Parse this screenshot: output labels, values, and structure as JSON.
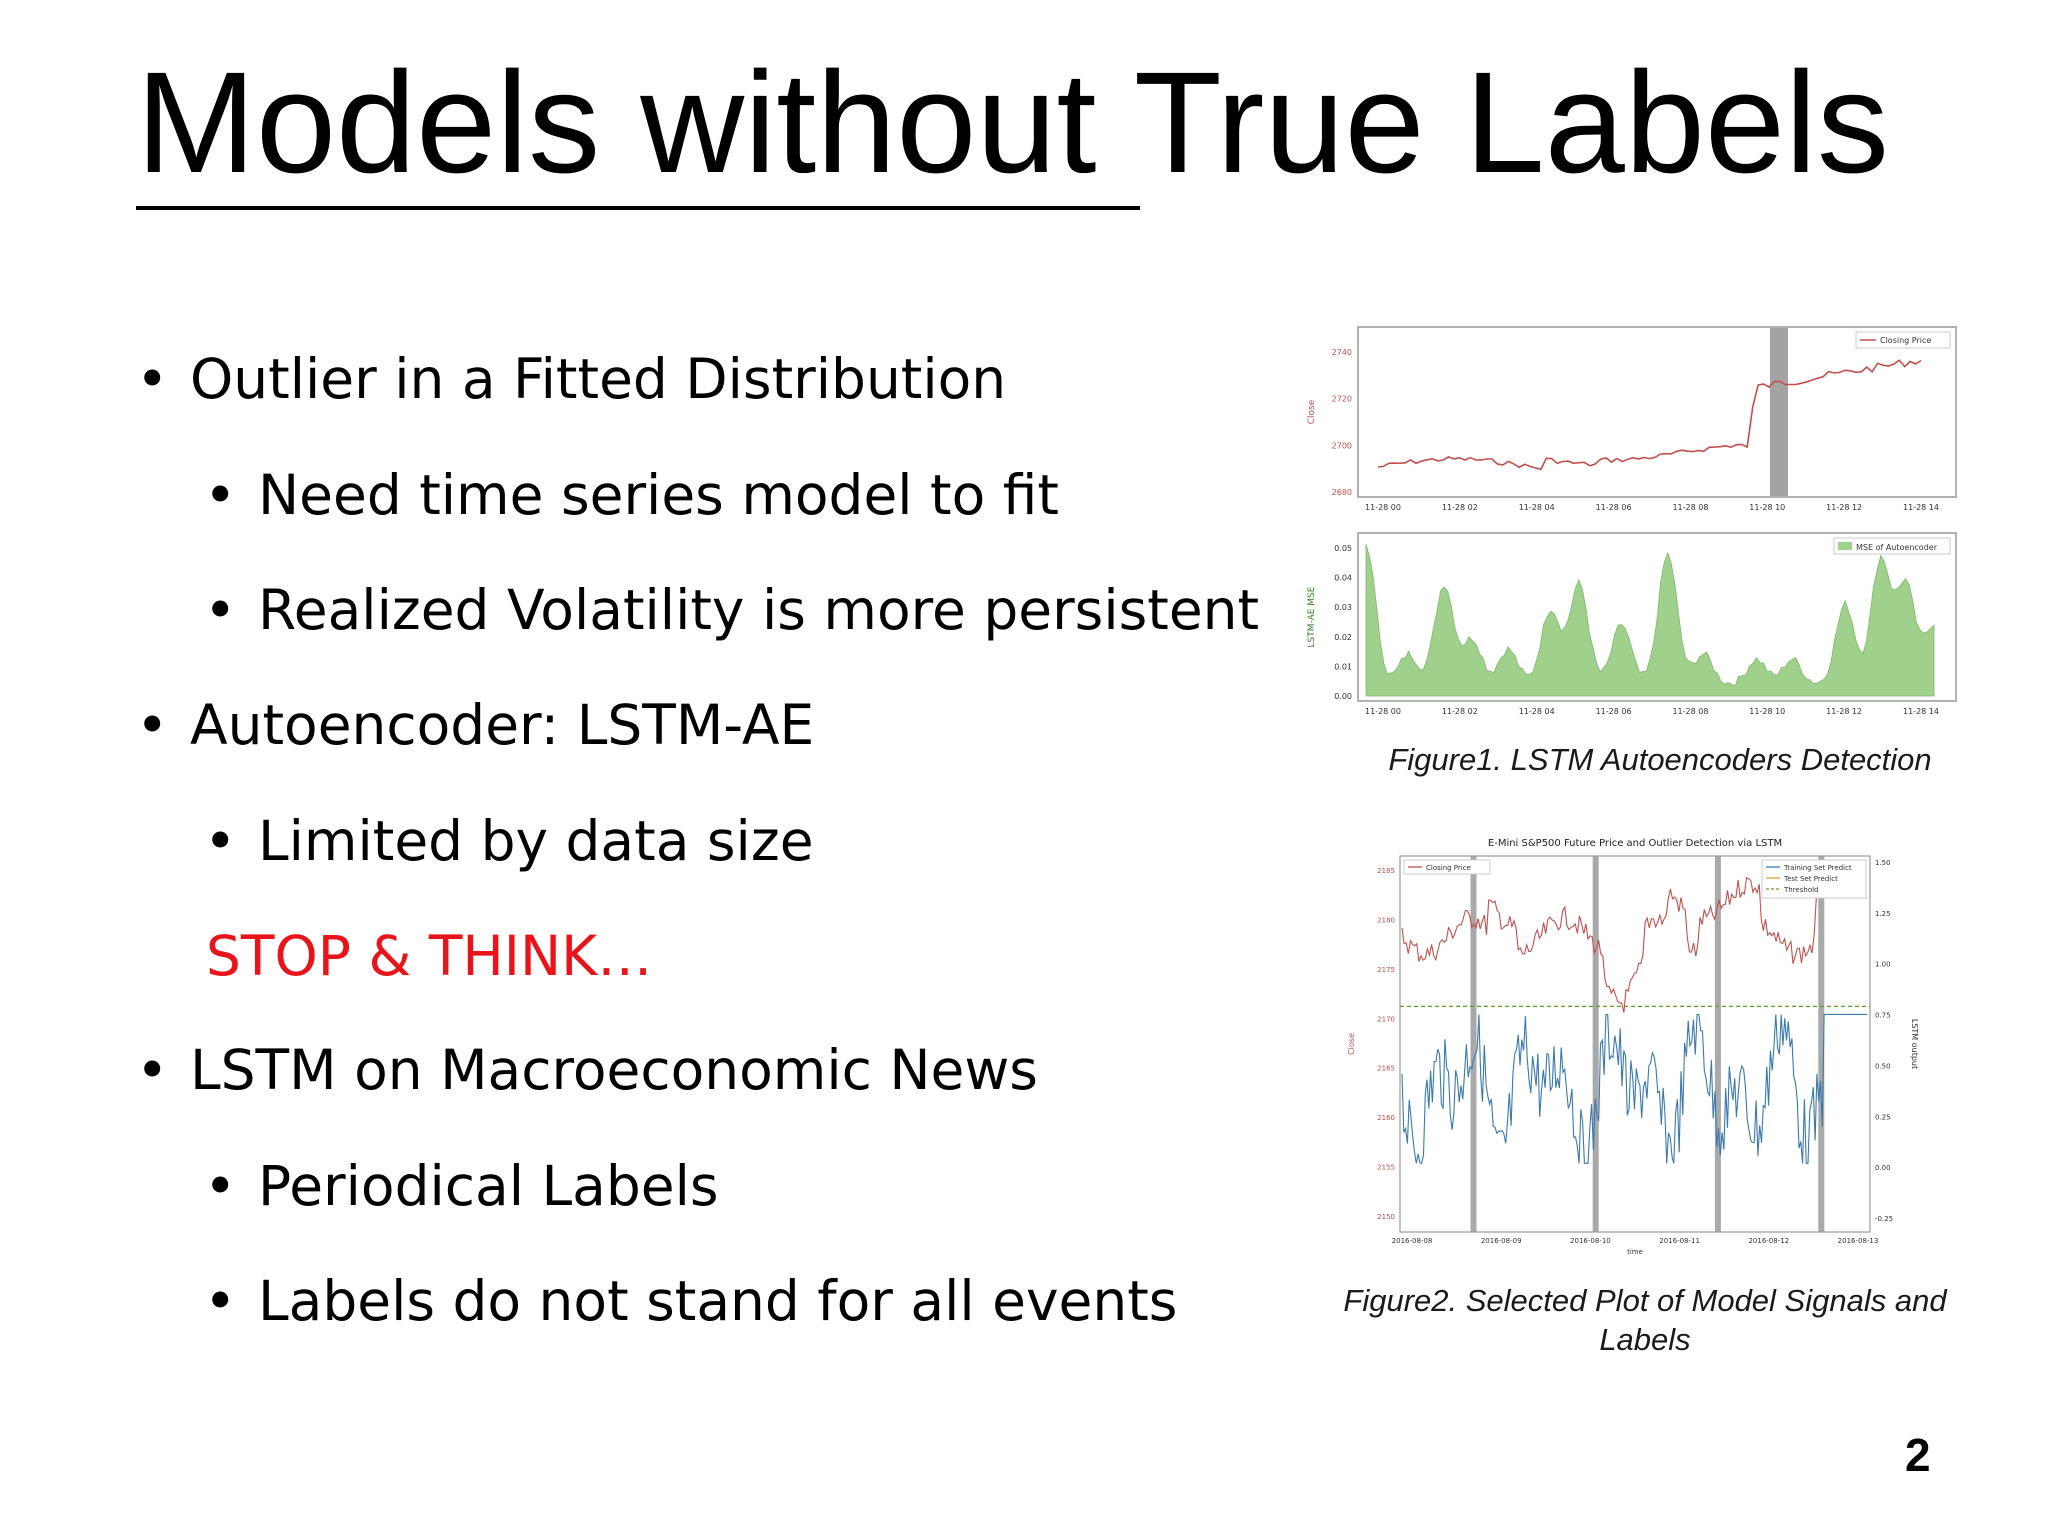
{
  "slide": {
    "title": "Models without True Labels",
    "page_number": "2"
  },
  "bullets": [
    {
      "level": 1,
      "text": "Outlier in a Fitted Distribution"
    },
    {
      "level": 2,
      "text": "Need time series model to fit"
    },
    {
      "level": 2,
      "text": "Realized Volatility is more persistent"
    },
    {
      "level": 1,
      "text": "Autoencoder: LSTM-AE"
    },
    {
      "level": 2,
      "text": "Limited by data size"
    },
    {
      "level": 2,
      "text": "STOP & THINK…",
      "color": "#e8141a",
      "no_bullet": true
    },
    {
      "level": 1,
      "text": "LSTM on Macroeconomic News"
    },
    {
      "level": 2,
      "text": "Periodical Labels"
    },
    {
      "level": 2,
      "text": "Labels do not stand for all events"
    }
  ],
  "figure1": {
    "caption": "Figure1. LSTM Autoencoders Detection",
    "top_plot": {
      "ylabel": "Close",
      "yticks": [
        "2740",
        "2720",
        "2700",
        "2680"
      ],
      "xticks": [
        "11-28 00",
        "11-28 02",
        "11-28 04",
        "11-28 06",
        "11-28 08",
        "11-28 10",
        "11-28 12",
        "11-28 14"
      ],
      "legend": "Closing Price",
      "line_color": "#c0504d"
    },
    "bottom_plot": {
      "ylabel": "LSTM-AE MSE",
      "yticks": [
        "0.05",
        "0.04",
        "0.03",
        "0.02",
        "0.01",
        "0.00"
      ],
      "xticks": [
        "11-28 00",
        "11-28 02",
        "11-28 04",
        "11-28 06",
        "11-28 08",
        "11-28 10",
        "11-28 12",
        "11-28 14"
      ],
      "legend": "MSE of Autoencoder",
      "fill_color": "#9fd08c"
    }
  },
  "figure2": {
    "caption_line1": "Figure2. Selected Plot of Model Signals and",
    "caption_line2": "Labels",
    "title": "E-Mini S&P500 Future Price and Outlier Detection via LSTM",
    "ylabel_left": "Close",
    "ylabel_right": "LSTM output",
    "xlabel": "time",
    "yticks_left": [
      "2185",
      "2180",
      "2175",
      "2170",
      "2165",
      "2160",
      "2155",
      "2150"
    ],
    "yticks_right": [
      "1.50",
      "1.25",
      "1.00",
      "0.75",
      "0.50",
      "0.25",
      "0.00",
      "-0.25"
    ],
    "xticks": [
      "2016-08-08",
      "2016-08-09",
      "2016-08-10",
      "2016-08-11",
      "2016-08-12",
      "2016-08-13"
    ],
    "legend_left": "Closing Price",
    "legend_right": [
      "Training Set Predict",
      "Test Set Predict",
      "Threshold"
    ],
    "price_color": "#c0504d",
    "signal_color": "#3a78b0",
    "threshold_color": "#5aa02c"
  }
}
